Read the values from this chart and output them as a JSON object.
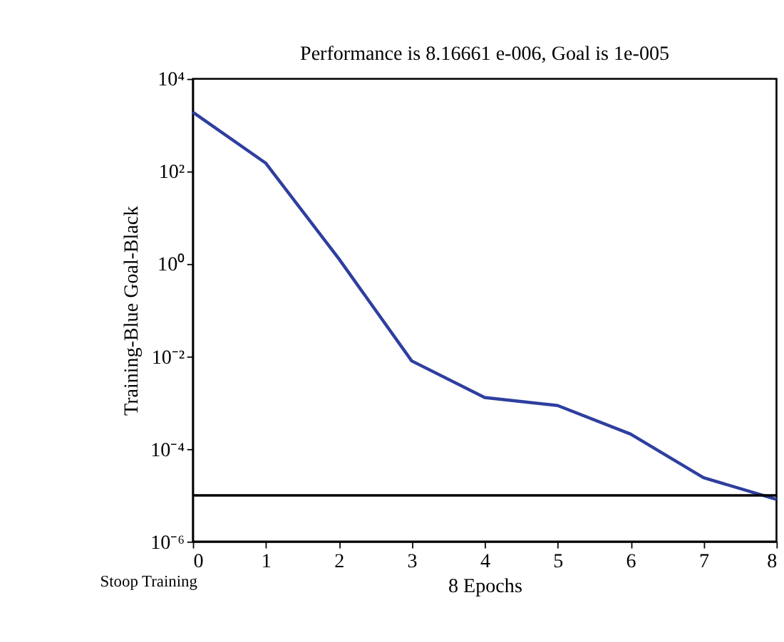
{
  "chart_data": {
    "type": "line",
    "title": "Performance is 8.16661 e-006, Goal is 1e-005",
    "xlabel": "8 Epochs",
    "ylabel": "Training-Blue Goal-Black",
    "x": [
      0,
      1,
      2,
      3,
      4,
      5,
      6,
      7,
      8
    ],
    "series": [
      {
        "color": "#2e3f9e",
        "values": [
          1900,
          150,
          1.3,
          0.008,
          0.0013,
          0.00087,
          0.00021,
          2.4e-05,
          8.16661e-06
        ]
      }
    ],
    "log": true,
    "xlim": [
      0,
      8
    ],
    "xticks": [
      0,
      1,
      2,
      3,
      4,
      5,
      6,
      7,
      8
    ],
    "ylim": [
      1e-06,
      10000
    ],
    "yticks": [
      {
        "value": 1e-06,
        "label": "10⁻⁶"
      },
      {
        "value": 0.0001,
        "label": "10⁻⁴"
      },
      {
        "value": 0.01,
        "label": "10⁻²"
      },
      {
        "value": 1,
        "label": "10⁰"
      },
      {
        "value": 100,
        "label": "10²"
      },
      {
        "value": 10000,
        "label": "10⁴"
      }
    ],
    "ref_lines": [
      {
        "axis": "y",
        "value": 1e-05,
        "color": "#000000"
      }
    ],
    "annotations": [
      "Stoop Training"
    ],
    "grid": false,
    "marker": "none",
    "line_style": "solid"
  }
}
